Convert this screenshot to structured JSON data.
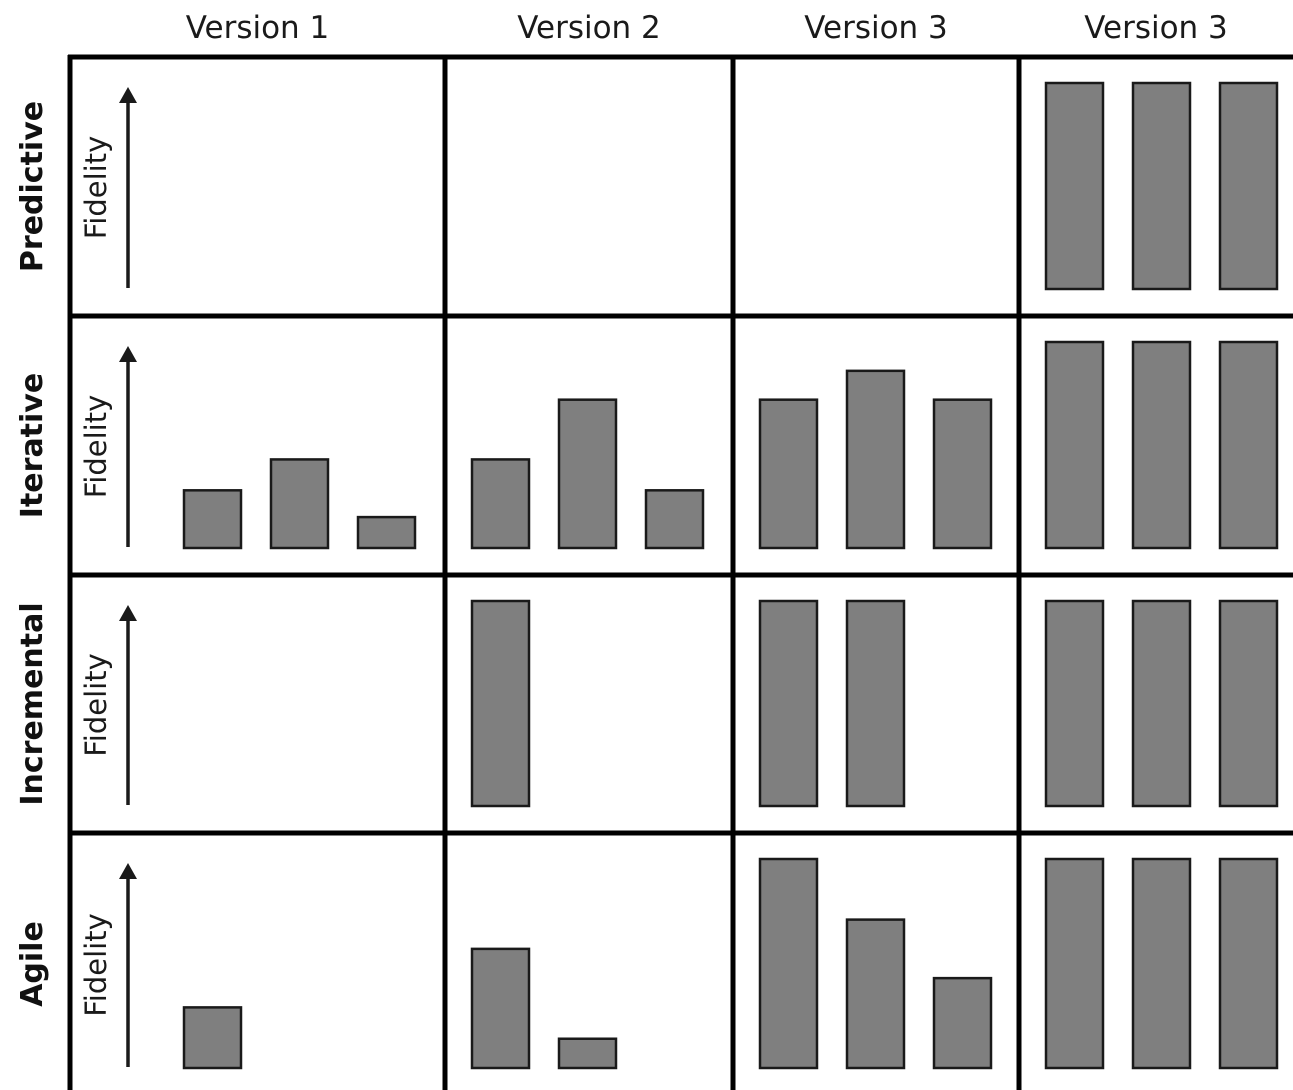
{
  "columns": [
    "Version 1",
    "Version 2",
    "Version 3",
    "Version 3"
  ],
  "rows": [
    {
      "label": "Predictive",
      "axis_label": "Fidelity",
      "cells": [
        [],
        [],
        [],
        [
          1.0,
          1.0,
          1.0
        ]
      ]
    },
    {
      "label": "Iterative",
      "axis_label": "Fidelity",
      "cells": [
        [
          0.28,
          0.43,
          0.15
        ],
        [
          0.43,
          0.72,
          0.28
        ],
        [
          0.72,
          0.86,
          0.72
        ],
        [
          1.0,
          1.0,
          1.0
        ]
      ]
    },
    {
      "label": "Incremental",
      "axis_label": "Fidelity",
      "cells": [
        [],
        [
          1.0
        ],
        [
          1.0,
          1.0
        ],
        [
          1.0,
          1.0,
          1.0
        ]
      ]
    },
    {
      "label": "Agile",
      "axis_label": "Fidelity",
      "cells": [
        [
          0.29
        ],
        [
          0.57,
          0.14
        ],
        [
          1.0,
          0.71,
          0.43
        ],
        [
          1.0,
          1.0,
          1.0
        ]
      ]
    }
  ],
  "colors": {
    "bar_fill": "#7f7f7f",
    "bar_stroke": "#1a1a1a",
    "grid": "#000000"
  }
}
